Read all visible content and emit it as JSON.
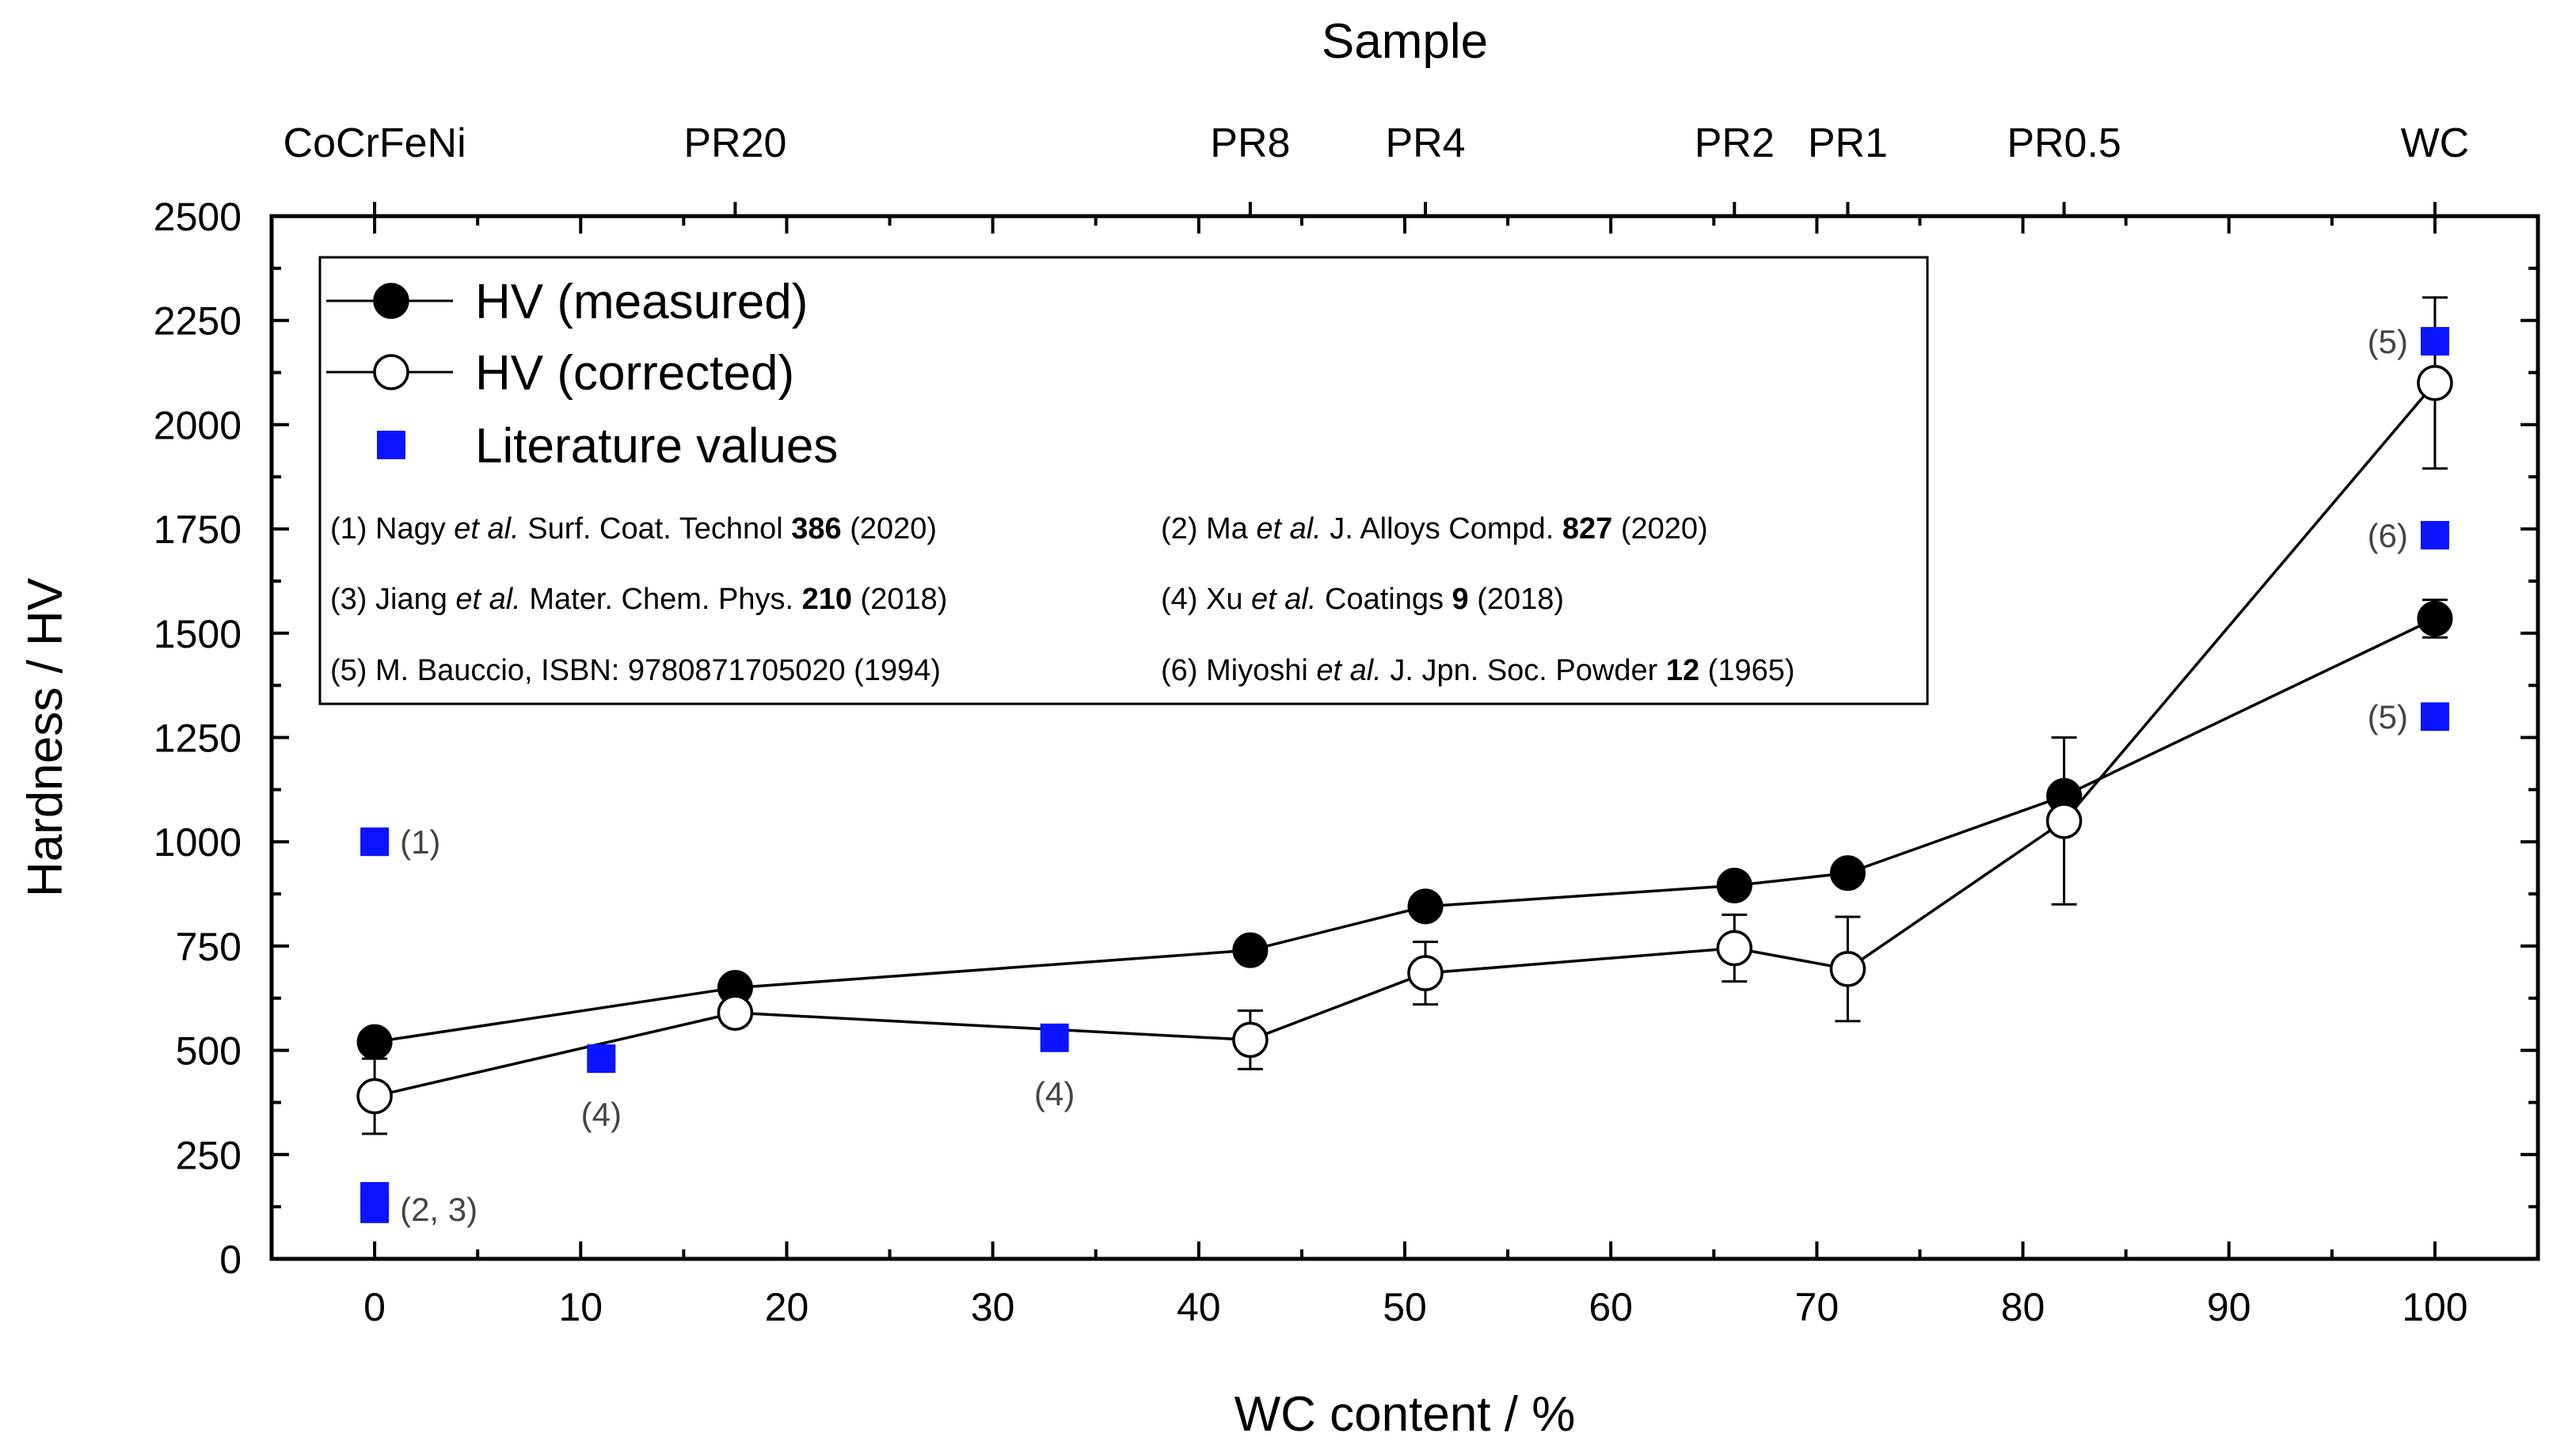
{
  "chart_data": {
    "type": "scatter",
    "title": "Sample",
    "xlabel": "WC content / %",
    "ylabel": "Hardness / HV",
    "xlim": [
      -5,
      105
    ],
    "ylim": [
      0,
      2500
    ],
    "xticks": [
      0,
      10,
      20,
      30,
      40,
      50,
      60,
      70,
      80,
      90,
      100
    ],
    "yticks": [
      0,
      250,
      500,
      750,
      1000,
      1250,
      1500,
      1750,
      2000,
      2250,
      2500
    ],
    "top_axis": {
      "title": "Sample",
      "labels": [
        {
          "x": 0,
          "text": "CoCrFeNi"
        },
        {
          "x": 17.5,
          "text": "PR20"
        },
        {
          "x": 42.5,
          "text": "PR8"
        },
        {
          "x": 51,
          "text": "PR4"
        },
        {
          "x": 66,
          "text": "PR2"
        },
        {
          "x": 71.5,
          "text": "PR1"
        },
        {
          "x": 82,
          "text": "PR0.5"
        },
        {
          "x": 100,
          "text": "WC"
        }
      ]
    },
    "series": [
      {
        "name": "HV (measured)",
        "marker": "filled-circle",
        "points": [
          {
            "x": 0,
            "y": 520,
            "err": 0
          },
          {
            "x": 17.5,
            "y": 650,
            "err": 0
          },
          {
            "x": 42.5,
            "y": 740,
            "err": 0
          },
          {
            "x": 51,
            "y": 845,
            "err": 0
          },
          {
            "x": 66,
            "y": 895,
            "err": 0
          },
          {
            "x": 71.5,
            "y": 925,
            "err": 0
          },
          {
            "x": 82,
            "y": 1110,
            "err": 0
          },
          {
            "x": 100,
            "y": 1535,
            "err": 45
          }
        ]
      },
      {
        "name": "HV (corrected)",
        "marker": "open-circle",
        "points": [
          {
            "x": 0,
            "y": 390,
            "err": 90
          },
          {
            "x": 17.5,
            "y": 590,
            "err": 30
          },
          {
            "x": 42.5,
            "y": 525,
            "err": 70
          },
          {
            "x": 51,
            "y": 685,
            "err": 75
          },
          {
            "x": 66,
            "y": 745,
            "err": 80
          },
          {
            "x": 71.5,
            "y": 695,
            "err": 125
          },
          {
            "x": 82,
            "y": 1050,
            "err": 200
          },
          {
            "x": 100,
            "y": 2100,
            "err": 205
          }
        ]
      },
      {
        "name": "Literature values",
        "marker": "blue-square",
        "points": [
          {
            "x": 0,
            "y": 1000,
            "label": "(1)",
            "label_pos": "right"
          },
          {
            "x": 0,
            "y": 150,
            "label": "",
            "label_pos": "right"
          },
          {
            "x": 0,
            "y": 120,
            "label": "(2, 3)",
            "label_pos": "right"
          },
          {
            "x": 11,
            "y": 480,
            "label": "(4)",
            "label_pos": "below"
          },
          {
            "x": 33,
            "y": 530,
            "label": "(4)",
            "label_pos": "below"
          },
          {
            "x": 100,
            "y": 2200,
            "label": "(5)",
            "label_pos": "left"
          },
          {
            "x": 100,
            "y": 1735,
            "label": "(6)",
            "label_pos": "left"
          },
          {
            "x": 100,
            "y": 1300,
            "label": "(5)",
            "label_pos": "left"
          }
        ]
      }
    ],
    "legend": {
      "placement": "top-left",
      "entries": [
        "HV (measured)",
        "HV (corrected)",
        "Literature values"
      ],
      "references": [
        [
          {
            "t": "(1) Nagy "
          },
          {
            "t": "et al.",
            "i": true
          },
          {
            "t": " Surf. Coat. Technol "
          },
          {
            "t": "386",
            "b": true
          },
          {
            "t": " (2020)"
          }
        ],
        [
          {
            "t": "(2) Ma "
          },
          {
            "t": "et al.",
            "i": true
          },
          {
            "t": " J. Alloys Compd. "
          },
          {
            "t": "827",
            "b": true
          },
          {
            "t": " (2020)"
          }
        ],
        [
          {
            "t": "(3) Jiang "
          },
          {
            "t": "et al.",
            "i": true
          },
          {
            "t": " Mater. Chem. Phys. "
          },
          {
            "t": "210",
            "b": true
          },
          {
            "t": " (2018)"
          }
        ],
        [
          {
            "t": "(4) Xu "
          },
          {
            "t": "et al.",
            "i": true
          },
          {
            "t": " Coatings "
          },
          {
            "t": "9",
            "b": true
          },
          {
            "t": " (2018)"
          }
        ],
        [
          {
            "t": "(5) M. Bauccio, ISBN: 9780871705020 (1994)"
          }
        ],
        [
          {
            "t": "(6) Miyoshi "
          },
          {
            "t": "et al.",
            "i": true
          },
          {
            "t": " J. Jpn. Soc. Powder "
          },
          {
            "t": "12",
            "b": true
          },
          {
            "t": " (1965)"
          }
        ]
      ]
    },
    "colors": {
      "literature": "#0a14ff",
      "line": "#000000",
      "label": "#444444"
    }
  }
}
